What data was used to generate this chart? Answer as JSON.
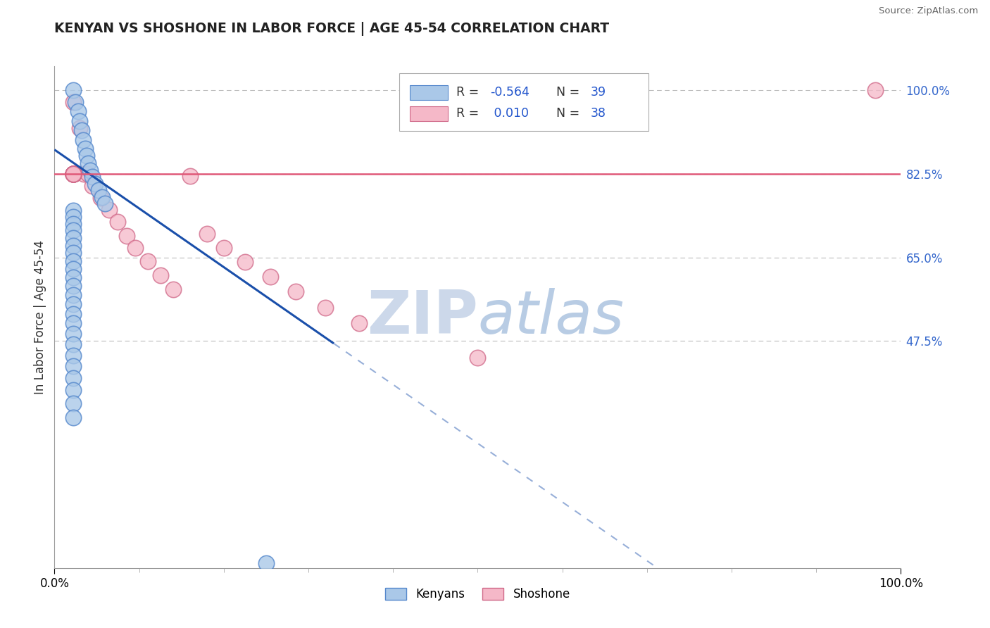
{
  "title": "KENYAN VS SHOSHONE IN LABOR FORCE | AGE 45-54 CORRELATION CHART",
  "source_text": "Source: ZipAtlas.com",
  "ylabel": "In Labor Force | Age 45-54",
  "xlim": [
    0.0,
    1.0
  ],
  "ylim": [
    0.0,
    1.05
  ],
  "background_color": "#ffffff",
  "kenyan_color": "#aac8e8",
  "kenyan_edge_color": "#5588cc",
  "shoshone_color": "#f5b8c8",
  "shoshone_edge_color": "#d06888",
  "kenyan_R": -0.564,
  "kenyan_N": 39,
  "shoshone_R": 0.01,
  "shoshone_N": 38,
  "kenyan_line_color": "#1a4faa",
  "shoshone_line_color": "#e05878",
  "watermark_color": "#ccd8ea",
  "grid_color": "#bbbbbb",
  "right_tick_color": "#3366cc",
  "ytick_positions": [
    1.0,
    0.825,
    0.65,
    0.475
  ],
  "ytick_labels": [
    "100.0%",
    "82.5%",
    "65.0%",
    "47.5%"
  ],
  "xtick_positions": [
    0.0,
    1.0
  ],
  "xtick_labels": [
    "0.0%",
    "100.0%"
  ],
  "kenyan_x": [
    0.022,
    0.025,
    0.028,
    0.03,
    0.032,
    0.034,
    0.036,
    0.038,
    0.04,
    0.042,
    0.045,
    0.048,
    0.052,
    0.056,
    0.06,
    0.022,
    0.022,
    0.022,
    0.022,
    0.022,
    0.022,
    0.022,
    0.022,
    0.022,
    0.022,
    0.022,
    0.022,
    0.022,
    0.022,
    0.022,
    0.022,
    0.022,
    0.022,
    0.022,
    0.022,
    0.022,
    0.022,
    0.022,
    0.25
  ],
  "kenyan_y": [
    1.0,
    0.975,
    0.955,
    0.935,
    0.915,
    0.895,
    0.878,
    0.862,
    0.847,
    0.832,
    0.818,
    0.804,
    0.79,
    0.776,
    0.762,
    0.748,
    0.734,
    0.72,
    0.706,
    0.69,
    0.675,
    0.659,
    0.642,
    0.625,
    0.608,
    0.59,
    0.571,
    0.552,
    0.532,
    0.512,
    0.49,
    0.468,
    0.445,
    0.422,
    0.397,
    0.372,
    0.345,
    0.316,
    0.01
  ],
  "shoshone_x": [
    0.022,
    0.03,
    0.035,
    0.04,
    0.045,
    0.055,
    0.065,
    0.075,
    0.085,
    0.095,
    0.11,
    0.125,
    0.14,
    0.16,
    0.18,
    0.2,
    0.225,
    0.255,
    0.285,
    0.32,
    0.36,
    0.022,
    0.022,
    0.022,
    0.022,
    0.022,
    0.022,
    0.022,
    0.022,
    0.022,
    0.022,
    0.022,
    0.022,
    0.022,
    0.022,
    0.022,
    0.97,
    0.5
  ],
  "shoshone_y": [
    0.975,
    0.92,
    0.825,
    0.825,
    0.8,
    0.775,
    0.75,
    0.725,
    0.695,
    0.67,
    0.642,
    0.613,
    0.583,
    0.82,
    0.7,
    0.67,
    0.64,
    0.61,
    0.578,
    0.545,
    0.512,
    0.825,
    0.825,
    0.825,
    0.825,
    0.825,
    0.825,
    0.825,
    0.825,
    0.825,
    0.825,
    0.825,
    0.825,
    0.825,
    0.825,
    0.825,
    1.0,
    0.44
  ]
}
